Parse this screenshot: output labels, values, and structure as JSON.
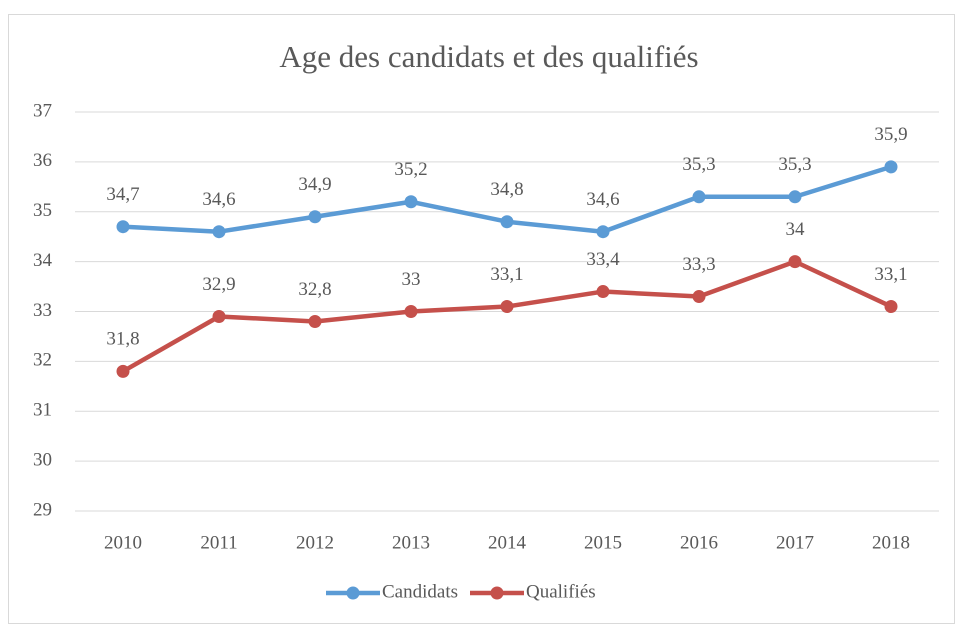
{
  "chart_data": {
    "type": "line",
    "title": "Age des candidats et des qualifiés",
    "categories": [
      "2010",
      "2011",
      "2012",
      "2013",
      "2014",
      "2015",
      "2016",
      "2017",
      "2018"
    ],
    "series": [
      {
        "name": "Candidats",
        "color": "#5b9bd5",
        "values": [
          34.7,
          34.6,
          34.9,
          35.2,
          34.8,
          34.6,
          35.3,
          35.3,
          35.9
        ],
        "value_labels": [
          "34,7",
          "34,6",
          "34,9",
          "35,2",
          "34,8",
          "34,6",
          "35,3",
          "35,3",
          "35,9"
        ]
      },
      {
        "name": "Qualifiés",
        "color": "#c5504b",
        "values": [
          31.8,
          32.9,
          32.8,
          33,
          33.1,
          33.4,
          33.3,
          34,
          33.1
        ],
        "value_labels": [
          "31,8",
          "32,9",
          "32,8",
          "33",
          "33,1",
          "33,4",
          "33,3",
          "34",
          "33,1"
        ]
      }
    ],
    "ylim": [
      29,
      37
    ],
    "yticks": [
      29,
      30,
      31,
      32,
      33,
      34,
      35,
      36,
      37
    ],
    "grid": true,
    "legend": "bottom"
  }
}
